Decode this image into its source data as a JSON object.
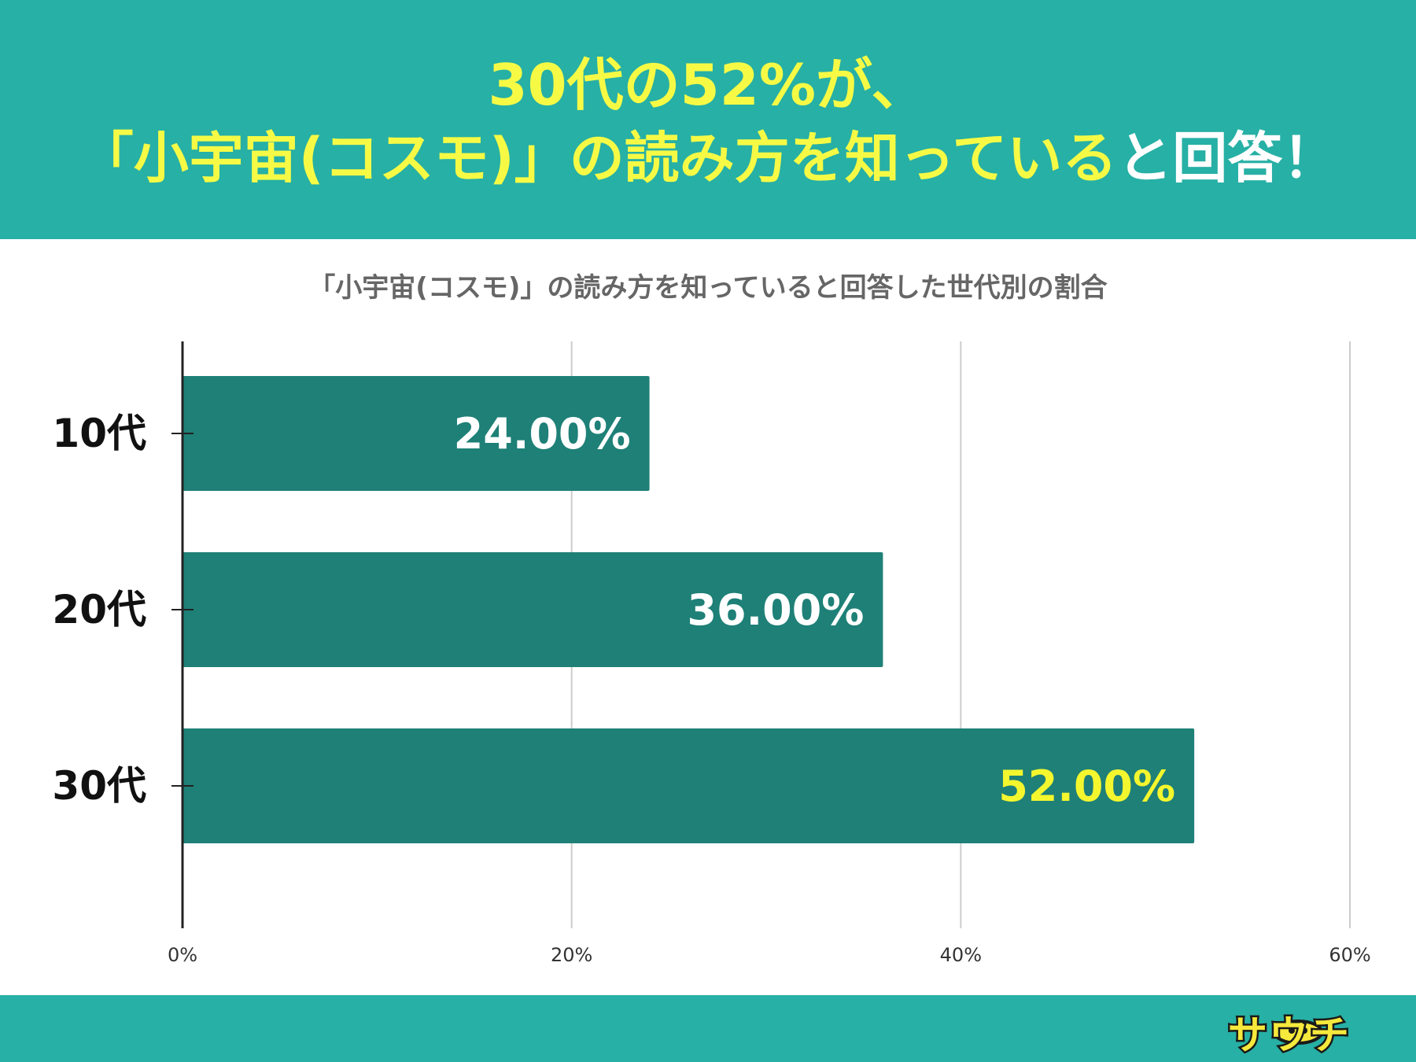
{
  "headline": {
    "line1": "30代の52%が、",
    "line2_main": "「小宇宙(コスモ)」の読み方を知っている",
    "line2_tail": "と回答！"
  },
  "colors": {
    "header_bg": "#27b0a5",
    "headline_highlight": "#f6fa45",
    "headline_plain": "#ffffff",
    "bar": "#1e8077",
    "bar_label": "#ffffff",
    "bar_label_highlight": "#f4f62e",
    "axis": "#222222",
    "grid": "#cccccc",
    "title_text": "#666666"
  },
  "chart_data": {
    "type": "bar",
    "orientation": "horizontal",
    "title": "「小宇宙(コスモ)」の読み方を知っていると回答した世代別の割合",
    "categories": [
      "10代",
      "20代",
      "30代"
    ],
    "values": [
      24,
      36,
      52
    ],
    "data_labels": [
      "24.00%",
      "36.00%",
      "52.00%"
    ],
    "highlight_index": 2,
    "xlim": [
      0,
      60
    ],
    "x_ticks": [
      0,
      20,
      40,
      60
    ],
    "x_tick_labels": [
      "0%",
      "20%",
      "40%",
      "60%"
    ],
    "grid": true,
    "legend": "none"
  },
  "logo": {
    "text": "サウチ",
    "icon": "ufo-character-icon"
  }
}
